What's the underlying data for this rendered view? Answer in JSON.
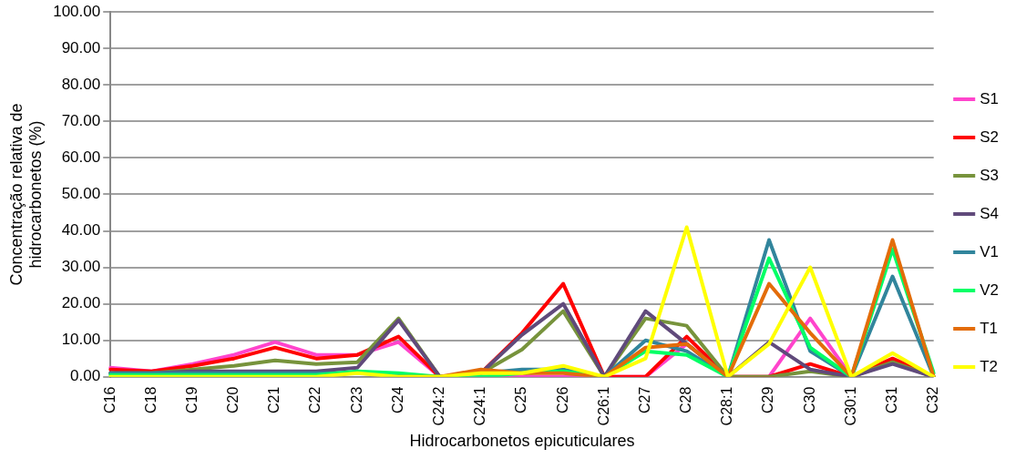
{
  "chart_data": {
    "type": "line",
    "xlabel": "Hidrocarbonetos epicuticulares",
    "ylabel": "Concentração relativa de hidrocarbonetos (%)",
    "categories": [
      "C16",
      "C18",
      "C19",
      "C20",
      "C21",
      "C22",
      "C23",
      "C24",
      "C24:2",
      "C24:1",
      "C25",
      "C26",
      "C26:1",
      "C27",
      "C28",
      "C28:1",
      "C29",
      "C30",
      "C30:1",
      "C31",
      "C32"
    ],
    "series": [
      {
        "name": "S1",
        "color": "#ff44cc",
        "values": [
          2.5,
          1.5,
          3.5,
          6,
          9.5,
          6,
          6,
          9.5,
          0,
          0,
          0,
          0,
          0,
          0,
          9,
          0,
          0,
          16,
          0,
          4,
          0
        ]
      },
      {
        "name": "S2",
        "color": "#ff0000",
        "values": [
          2,
          1.5,
          3,
          5,
          8,
          5,
          6,
          11,
          0,
          1,
          12,
          25.5,
          0,
          0,
          11,
          0,
          0,
          3.5,
          0,
          5,
          0
        ]
      },
      {
        "name": "S3",
        "color": "#77933c",
        "values": [
          1,
          1,
          2,
          3,
          4.5,
          3.5,
          4,
          16,
          0,
          1,
          7.5,
          18,
          0,
          16,
          14,
          0,
          0,
          1.5,
          0,
          4,
          0
        ]
      },
      {
        "name": "S4",
        "color": "#604a7b",
        "values": [
          1,
          1,
          1.5,
          1.5,
          1.5,
          1.5,
          2.5,
          15.5,
          0,
          1,
          11.5,
          20,
          0,
          18,
          9,
          0,
          9.5,
          2,
          0,
          3.5,
          0
        ]
      },
      {
        "name": "V1",
        "color": "#31859c",
        "values": [
          1,
          1,
          1,
          1,
          1,
          1,
          1,
          0.5,
          0,
          1,
          2,
          2,
          0,
          10,
          7,
          0,
          37.5,
          7,
          0,
          27.5,
          0
        ]
      },
      {
        "name": "V2",
        "color": "#00ff66",
        "values": [
          0.5,
          0.5,
          0.5,
          0.5,
          0.5,
          0.5,
          1.5,
          1,
          0,
          0,
          1,
          1.5,
          0,
          7,
          6,
          0,
          32.5,
          8,
          0,
          35,
          1
        ]
      },
      {
        "name": "T1",
        "color": "#e36c09",
        "values": [
          null,
          null,
          null,
          null,
          null,
          null,
          null,
          0,
          0,
          2,
          1,
          1,
          0,
          8,
          9,
          0,
          25.5,
          12,
          0,
          37.5,
          0
        ]
      },
      {
        "name": "T2",
        "color": "#ffff00",
        "values": [
          0,
          0,
          0,
          0,
          0,
          0,
          1,
          0,
          0,
          1,
          1,
          3,
          0,
          5,
          41,
          0,
          9,
          30,
          0,
          6.5,
          0
        ]
      }
    ],
    "ylim": [
      0,
      100
    ],
    "yticks": [
      {
        "value": 0,
        "label": "0.00"
      },
      {
        "value": 10,
        "label": "10.00"
      },
      {
        "value": 20,
        "label": "20.00"
      },
      {
        "value": 30,
        "label": "30.00"
      },
      {
        "value": 40,
        "label": "40.00"
      },
      {
        "value": 50,
        "label": "50.00"
      },
      {
        "value": 60,
        "label": "60.00"
      },
      {
        "value": 70,
        "label": "70.00"
      },
      {
        "value": 80,
        "label": "80.00"
      },
      {
        "value": 90,
        "label": "90.00"
      },
      {
        "value": 100,
        "label": "100.00"
      }
    ],
    "grid": "y",
    "legend": "right",
    "marker": "none",
    "line_style": "solid"
  }
}
